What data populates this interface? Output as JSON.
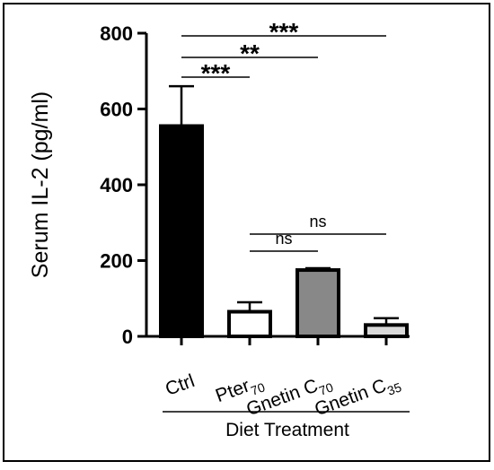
{
  "chart_data": {
    "type": "bar",
    "categories": [
      {
        "main": "Ctrl",
        "sub": ""
      },
      {
        "main": "Pter",
        "sub": "70"
      },
      {
        "main": "Gnetin C",
        "sub": "70"
      },
      {
        "main": "Gnetin C",
        "sub": "35"
      }
    ],
    "values": [
      555,
      65,
      175,
      30
    ],
    "errors": [
      105,
      25,
      5,
      18
    ],
    "bar_fills": [
      "#000000",
      "#ffffff",
      "#888888",
      "#d9d9d9"
    ],
    "ylabel": "Serum IL-2 (pg/ml)",
    "xlabel": "Diet Treatment",
    "ylim": [
      0,
      800
    ],
    "yticks": [
      "0",
      "200",
      "400",
      "600",
      "800"
    ],
    "grid": false,
    "significance": [
      {
        "from": 0,
        "to": 1,
        "label": "***"
      },
      {
        "from": 0,
        "to": 2,
        "label": "**"
      },
      {
        "from": 0,
        "to": 3,
        "label": "***"
      },
      {
        "from": 1,
        "to": 2,
        "label": "ns"
      },
      {
        "from": 1,
        "to": 3,
        "label": "ns"
      }
    ]
  }
}
